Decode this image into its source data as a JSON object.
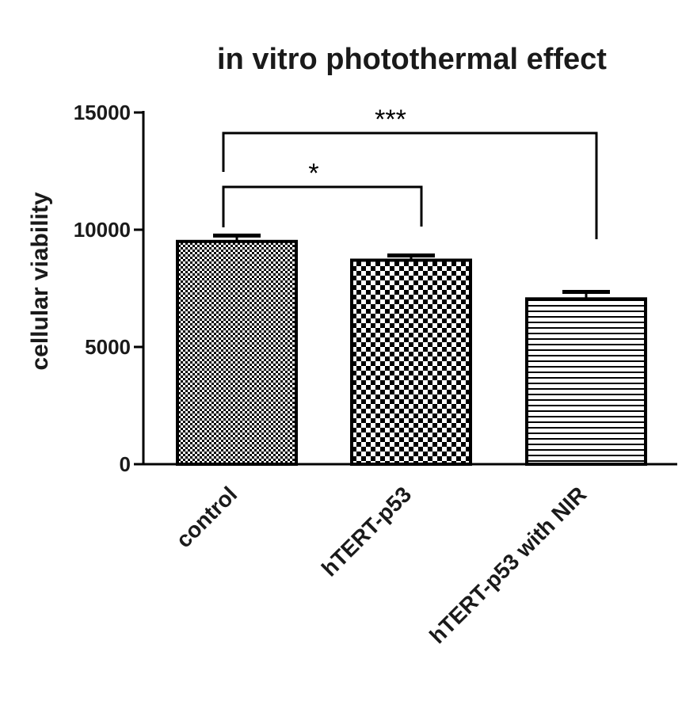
{
  "chart_data": {
    "type": "bar",
    "title": "in vitro photothermal effect",
    "xlabel": "",
    "ylabel": "cellular viability",
    "ylim": [
      0,
      15000
    ],
    "yticks": [
      0,
      5000,
      10000,
      15000
    ],
    "categories": [
      "control",
      "hTERT-p53",
      "hTERT-p53 with NIR"
    ],
    "values": [
      9500,
      8700,
      7050
    ],
    "errors": [
      250,
      200,
      300
    ],
    "patterns": [
      "fine-checker",
      "coarse-checker",
      "horizontal-lines"
    ],
    "significance": [
      {
        "from": 0,
        "to": 1,
        "label": "*"
      },
      {
        "from": 0,
        "to": 2,
        "label": "***"
      }
    ],
    "grid": false,
    "legend": "none"
  },
  "colors": {
    "bar_outline": "#000000",
    "bar_pattern": "#000000",
    "background": "#ffffff",
    "text": "#1a1a1a"
  }
}
